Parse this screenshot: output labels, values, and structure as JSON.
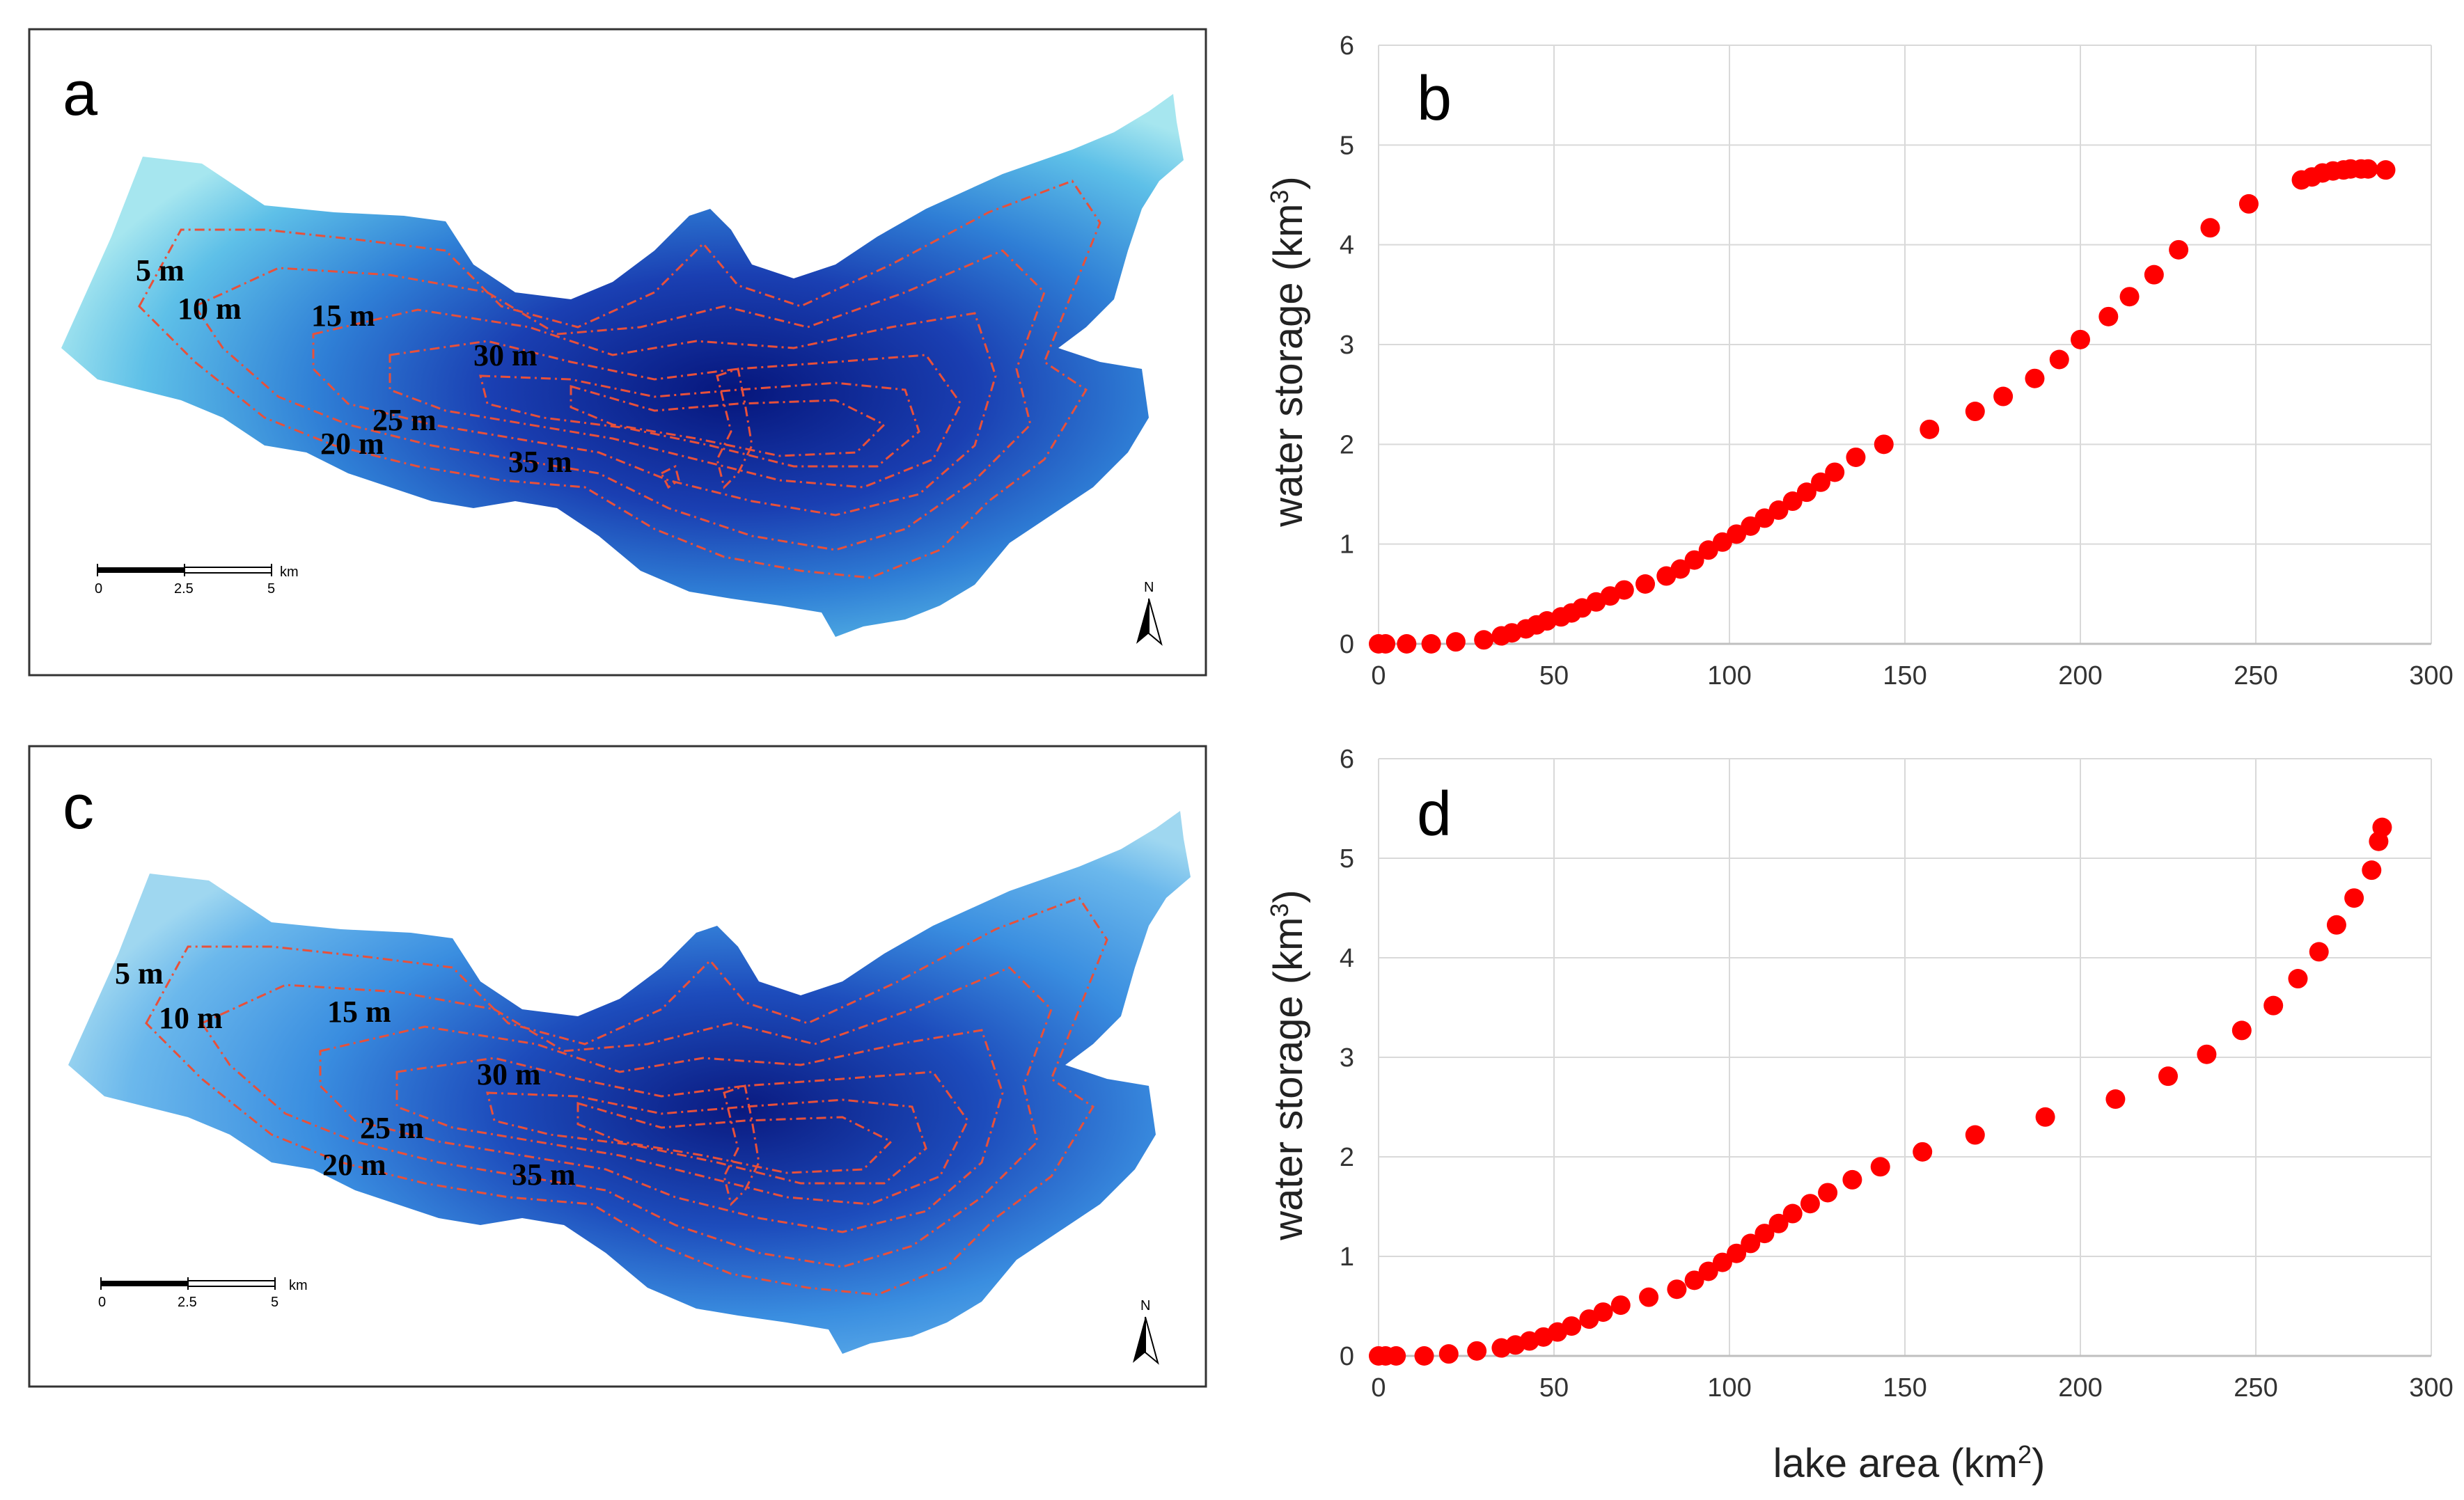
{
  "panels": {
    "a": {
      "letter": "a"
    },
    "b": {
      "letter": "b"
    },
    "c": {
      "letter": "c"
    },
    "d": {
      "letter": "d"
    }
  },
  "maps": {
    "contour_labels": [
      "5 m",
      "10 m",
      "15 m",
      "20 m",
      "25 m",
      "30 m",
      "35 m"
    ],
    "scale_bar": {
      "ticks": [
        "0",
        "2.5",
        "5"
      ],
      "unit": "km"
    },
    "north": "N",
    "colors": {
      "deep": "#0a1f8a",
      "mid": "#2f7fd6",
      "shallow": "#9fe3ee",
      "contour": "#e8503a"
    }
  },
  "chart_data": [
    {
      "id": "b",
      "type": "scatter",
      "title": "",
      "xlabel": "",
      "ylabel": "water storage (km3)",
      "ylabel_text": "water storage (km",
      "ylabel_sup": "3",
      "ylabel_end": ")",
      "xlim": [
        0,
        300
      ],
      "ylim": [
        0,
        6
      ],
      "xticks": [
        "0",
        "50",
        "100",
        "150",
        "200",
        "250",
        "300"
      ],
      "yticks": [
        "0",
        "1",
        "2",
        "3",
        "4",
        "5",
        "6"
      ],
      "grid": true,
      "marker_color": "#ff0000",
      "points": [
        [
          0,
          0
        ],
        [
          2,
          0
        ],
        [
          8,
          0
        ],
        [
          15,
          0
        ],
        [
          22,
          0.02
        ],
        [
          30,
          0.04
        ],
        [
          35,
          0.08
        ],
        [
          38,
          0.11
        ],
        [
          42,
          0.15
        ],
        [
          45,
          0.19
        ],
        [
          48,
          0.23
        ],
        [
          52,
          0.27
        ],
        [
          55,
          0.31
        ],
        [
          58,
          0.36
        ],
        [
          62,
          0.42
        ],
        [
          66,
          0.48
        ],
        [
          70,
          0.54
        ],
        [
          76,
          0.6
        ],
        [
          82,
          0.68
        ],
        [
          86,
          0.75
        ],
        [
          90,
          0.84
        ],
        [
          94,
          0.94
        ],
        [
          98,
          1.02
        ],
        [
          102,
          1.1
        ],
        [
          106,
          1.18
        ],
        [
          110,
          1.26
        ],
        [
          114,
          1.34
        ],
        [
          118,
          1.43
        ],
        [
          122,
          1.52
        ],
        [
          126,
          1.62
        ],
        [
          130,
          1.72
        ],
        [
          136,
          1.87
        ],
        [
          144,
          2.0
        ],
        [
          157,
          2.15
        ],
        [
          170,
          2.33
        ],
        [
          178,
          2.48
        ],
        [
          187,
          2.66
        ],
        [
          194,
          2.85
        ],
        [
          200,
          3.05
        ],
        [
          208,
          3.28
        ],
        [
          214,
          3.48
        ],
        [
          221,
          3.7
        ],
        [
          228,
          3.95
        ],
        [
          237,
          4.17
        ],
        [
          248,
          4.41
        ],
        [
          263,
          4.65
        ],
        [
          266,
          4.68
        ],
        [
          269,
          4.72
        ],
        [
          272,
          4.74
        ],
        [
          275,
          4.75
        ],
        [
          277,
          4.76
        ],
        [
          280,
          4.76
        ],
        [
          282,
          4.76
        ],
        [
          287,
          4.75
        ]
      ]
    },
    {
      "id": "d",
      "type": "scatter",
      "title": "",
      "xlabel": "lake area (km2)",
      "xlabel_text": "lake area (km",
      "xlabel_sup": "2",
      "xlabel_end": ")",
      "ylabel": "water storage (km3)",
      "ylabel_text": "water storage (km",
      "ylabel_sup": "3",
      "ylabel_end": ")",
      "xlim": [
        0,
        300
      ],
      "ylim": [
        0,
        6
      ],
      "xticks": [
        "0",
        "50",
        "100",
        "150",
        "200",
        "250",
        "300"
      ],
      "yticks": [
        "0",
        "1",
        "2",
        "3",
        "4",
        "5",
        "6"
      ],
      "grid": true,
      "marker_color": "#ff0000",
      "points": [
        [
          0,
          0
        ],
        [
          2,
          0
        ],
        [
          5,
          0
        ],
        [
          13,
          0
        ],
        [
          20,
          0.02
        ],
        [
          28,
          0.05
        ],
        [
          35,
          0.08
        ],
        [
          39,
          0.11
        ],
        [
          43,
          0.15
        ],
        [
          47,
          0.19
        ],
        [
          51,
          0.24
        ],
        [
          55,
          0.3
        ],
        [
          60,
          0.37
        ],
        [
          64,
          0.44
        ],
        [
          69,
          0.51
        ],
        [
          77,
          0.59
        ],
        [
          85,
          0.67
        ],
        [
          90,
          0.76
        ],
        [
          94,
          0.85
        ],
        [
          98,
          0.94
        ],
        [
          102,
          1.03
        ],
        [
          106,
          1.13
        ],
        [
          110,
          1.23
        ],
        [
          114,
          1.33
        ],
        [
          118,
          1.43
        ],
        [
          123,
          1.53
        ],
        [
          128,
          1.64
        ],
        [
          135,
          1.77
        ],
        [
          143,
          1.9
        ],
        [
          155,
          2.05
        ],
        [
          170,
          2.22
        ],
        [
          190,
          2.4
        ],
        [
          210,
          2.58
        ],
        [
          225,
          2.81
        ],
        [
          236,
          3.03
        ],
        [
          246,
          3.27
        ],
        [
          255,
          3.52
        ],
        [
          262,
          3.79
        ],
        [
          268,
          4.06
        ],
        [
          273,
          4.33
        ],
        [
          278,
          4.6
        ],
        [
          283,
          4.88
        ],
        [
          285,
          5.17
        ],
        [
          286,
          5.31
        ]
      ]
    }
  ]
}
